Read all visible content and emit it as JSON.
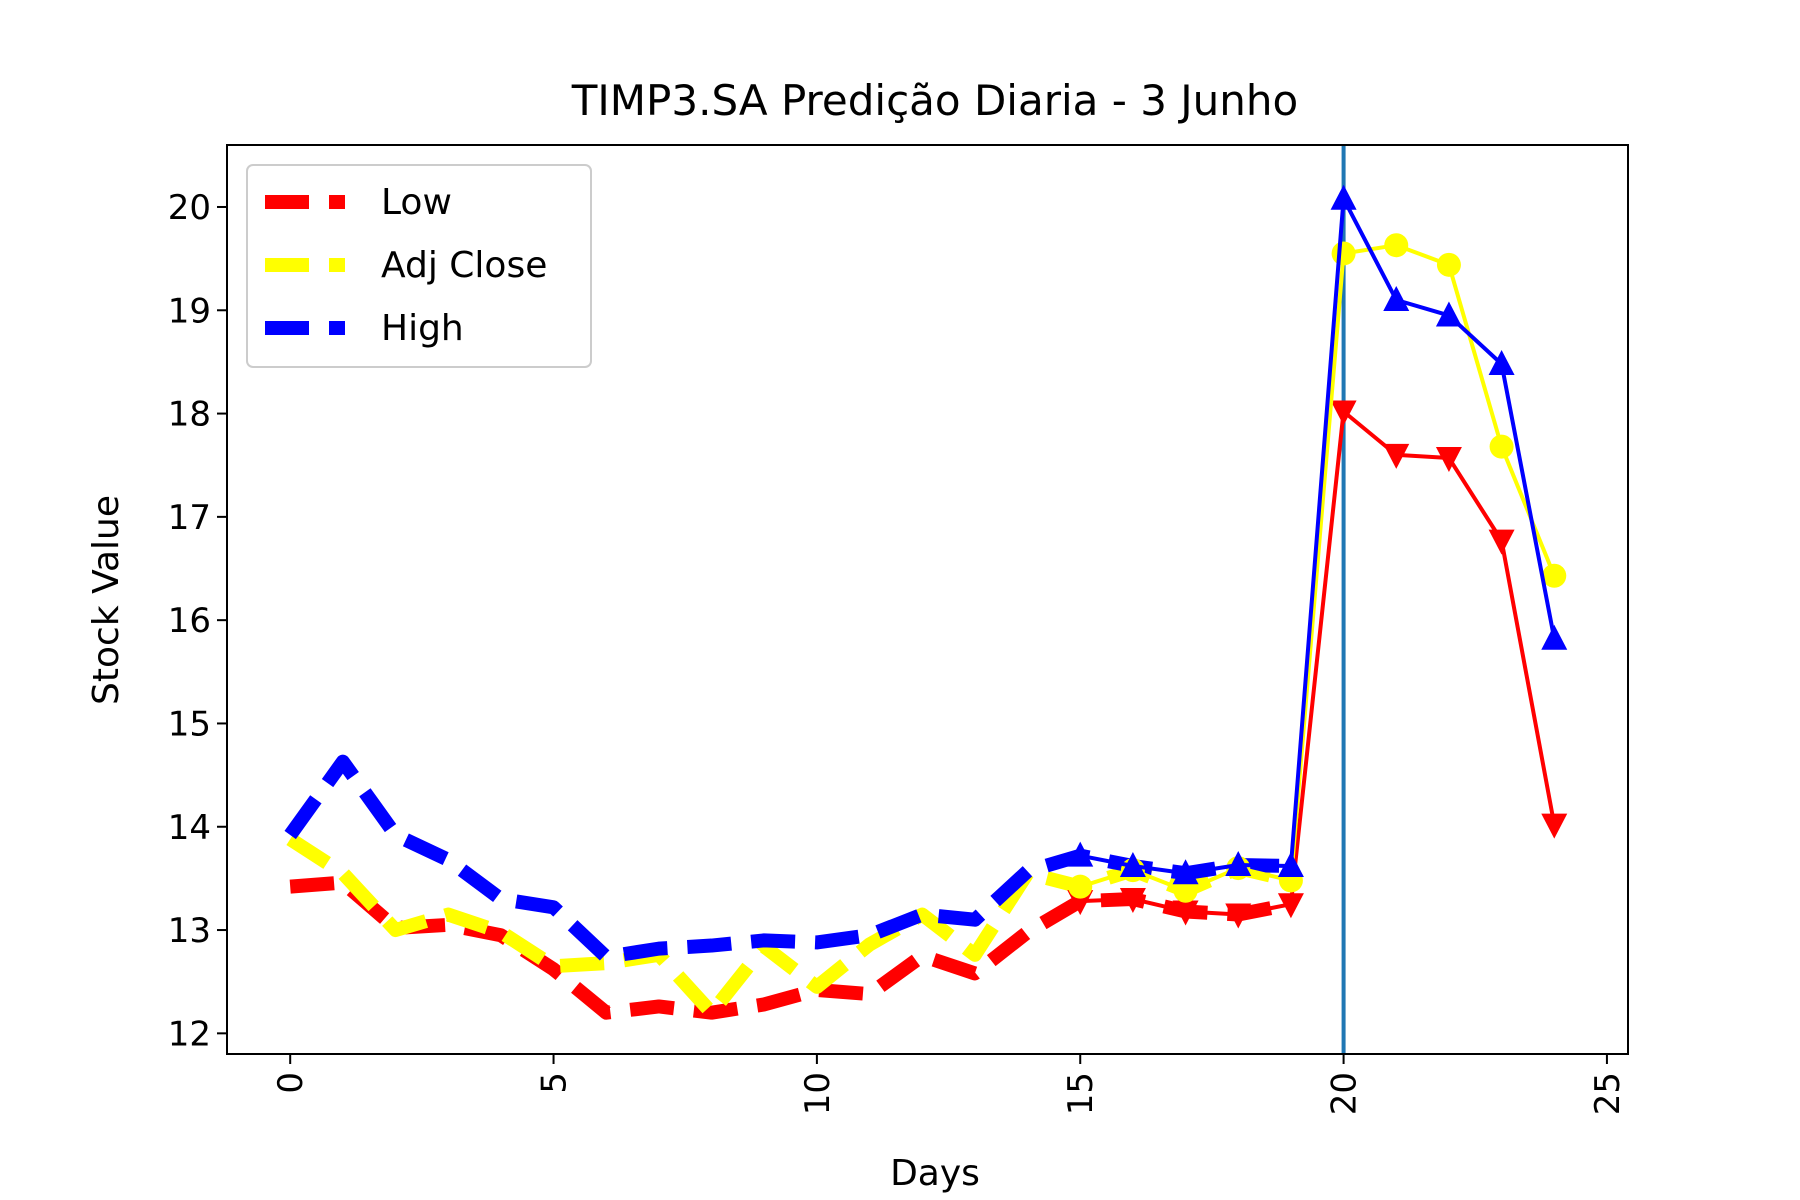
{
  "chart_data": {
    "type": "line",
    "title": "TIMP3.SA Predição Diaria - 3 Junho",
    "xlabel": "Days",
    "ylabel": "Stock Value",
    "xlim": [
      -1.2,
      25.4
    ],
    "ylim": [
      11.8,
      20.6
    ],
    "x_ticks": [
      0,
      5,
      10,
      15,
      20,
      25
    ],
    "y_ticks": [
      12,
      13,
      14,
      15,
      16,
      17,
      18,
      19,
      20
    ],
    "grid": false,
    "legend_position": "upper left",
    "vertical_line": {
      "x": 20,
      "color": "#1f77b4"
    },
    "series": [
      {
        "name": "Low",
        "color": "#ff0000",
        "historical": {
          "x": [
            0,
            1,
            2,
            3,
            4,
            5,
            6,
            7,
            8,
            9,
            10,
            11,
            12,
            13,
            14,
            15,
            16,
            17,
            18,
            19
          ],
          "y": [
            13.42,
            13.46,
            13.02,
            13.05,
            12.95,
            12.62,
            12.2,
            12.26,
            12.2,
            12.28,
            12.42,
            12.38,
            12.75,
            12.58,
            12.98,
            13.28,
            13.3,
            13.18,
            13.15,
            13.25
          ]
        },
        "predicted": {
          "x": [
            15,
            16,
            17,
            18,
            19,
            20,
            21,
            22,
            23,
            24
          ],
          "y": [
            13.28,
            13.3,
            13.18,
            13.15,
            13.25,
            18.02,
            17.6,
            17.57,
            16.77,
            14.02
          ],
          "marker": "triangle-down"
        }
      },
      {
        "name": "Adj Close",
        "color": "#ffff00",
        "historical": {
          "x": [
            0,
            1,
            2,
            3,
            4,
            5,
            6,
            7,
            8,
            9,
            10,
            11,
            12,
            13,
            14,
            15,
            16,
            17,
            18,
            19
          ],
          "y": [
            13.88,
            13.55,
            13.0,
            13.15,
            12.98,
            12.65,
            12.68,
            12.76,
            12.2,
            12.84,
            12.45,
            12.86,
            13.15,
            12.76,
            13.55,
            13.42,
            13.58,
            13.38,
            13.6,
            13.48
          ]
        },
        "predicted": {
          "x": [
            15,
            16,
            17,
            18,
            19,
            20,
            21,
            22,
            23,
            24
          ],
          "y": [
            13.42,
            13.58,
            13.38,
            13.6,
            13.48,
            19.55,
            19.63,
            19.44,
            17.68,
            16.43
          ],
          "marker": "circle"
        }
      },
      {
        "name": "High",
        "color": "#0000ff",
        "historical": {
          "x": [
            0,
            1,
            2,
            3,
            4,
            5,
            6,
            7,
            8,
            9,
            10,
            11,
            12,
            13,
            14,
            15,
            16,
            17,
            18,
            19
          ],
          "y": [
            13.92,
            14.63,
            13.92,
            13.68,
            13.3,
            13.22,
            12.74,
            12.82,
            12.85,
            12.9,
            12.88,
            12.95,
            13.15,
            13.1,
            13.57,
            13.72,
            13.62,
            13.55,
            13.63,
            13.62
          ]
        },
        "predicted": {
          "x": [
            15,
            16,
            17,
            18,
            19,
            20,
            21,
            22,
            23,
            24
          ],
          "y": [
            13.72,
            13.62,
            13.55,
            13.63,
            13.62,
            20.08,
            19.1,
            18.95,
            18.48,
            15.82
          ],
          "marker": "triangle-up"
        }
      }
    ]
  }
}
